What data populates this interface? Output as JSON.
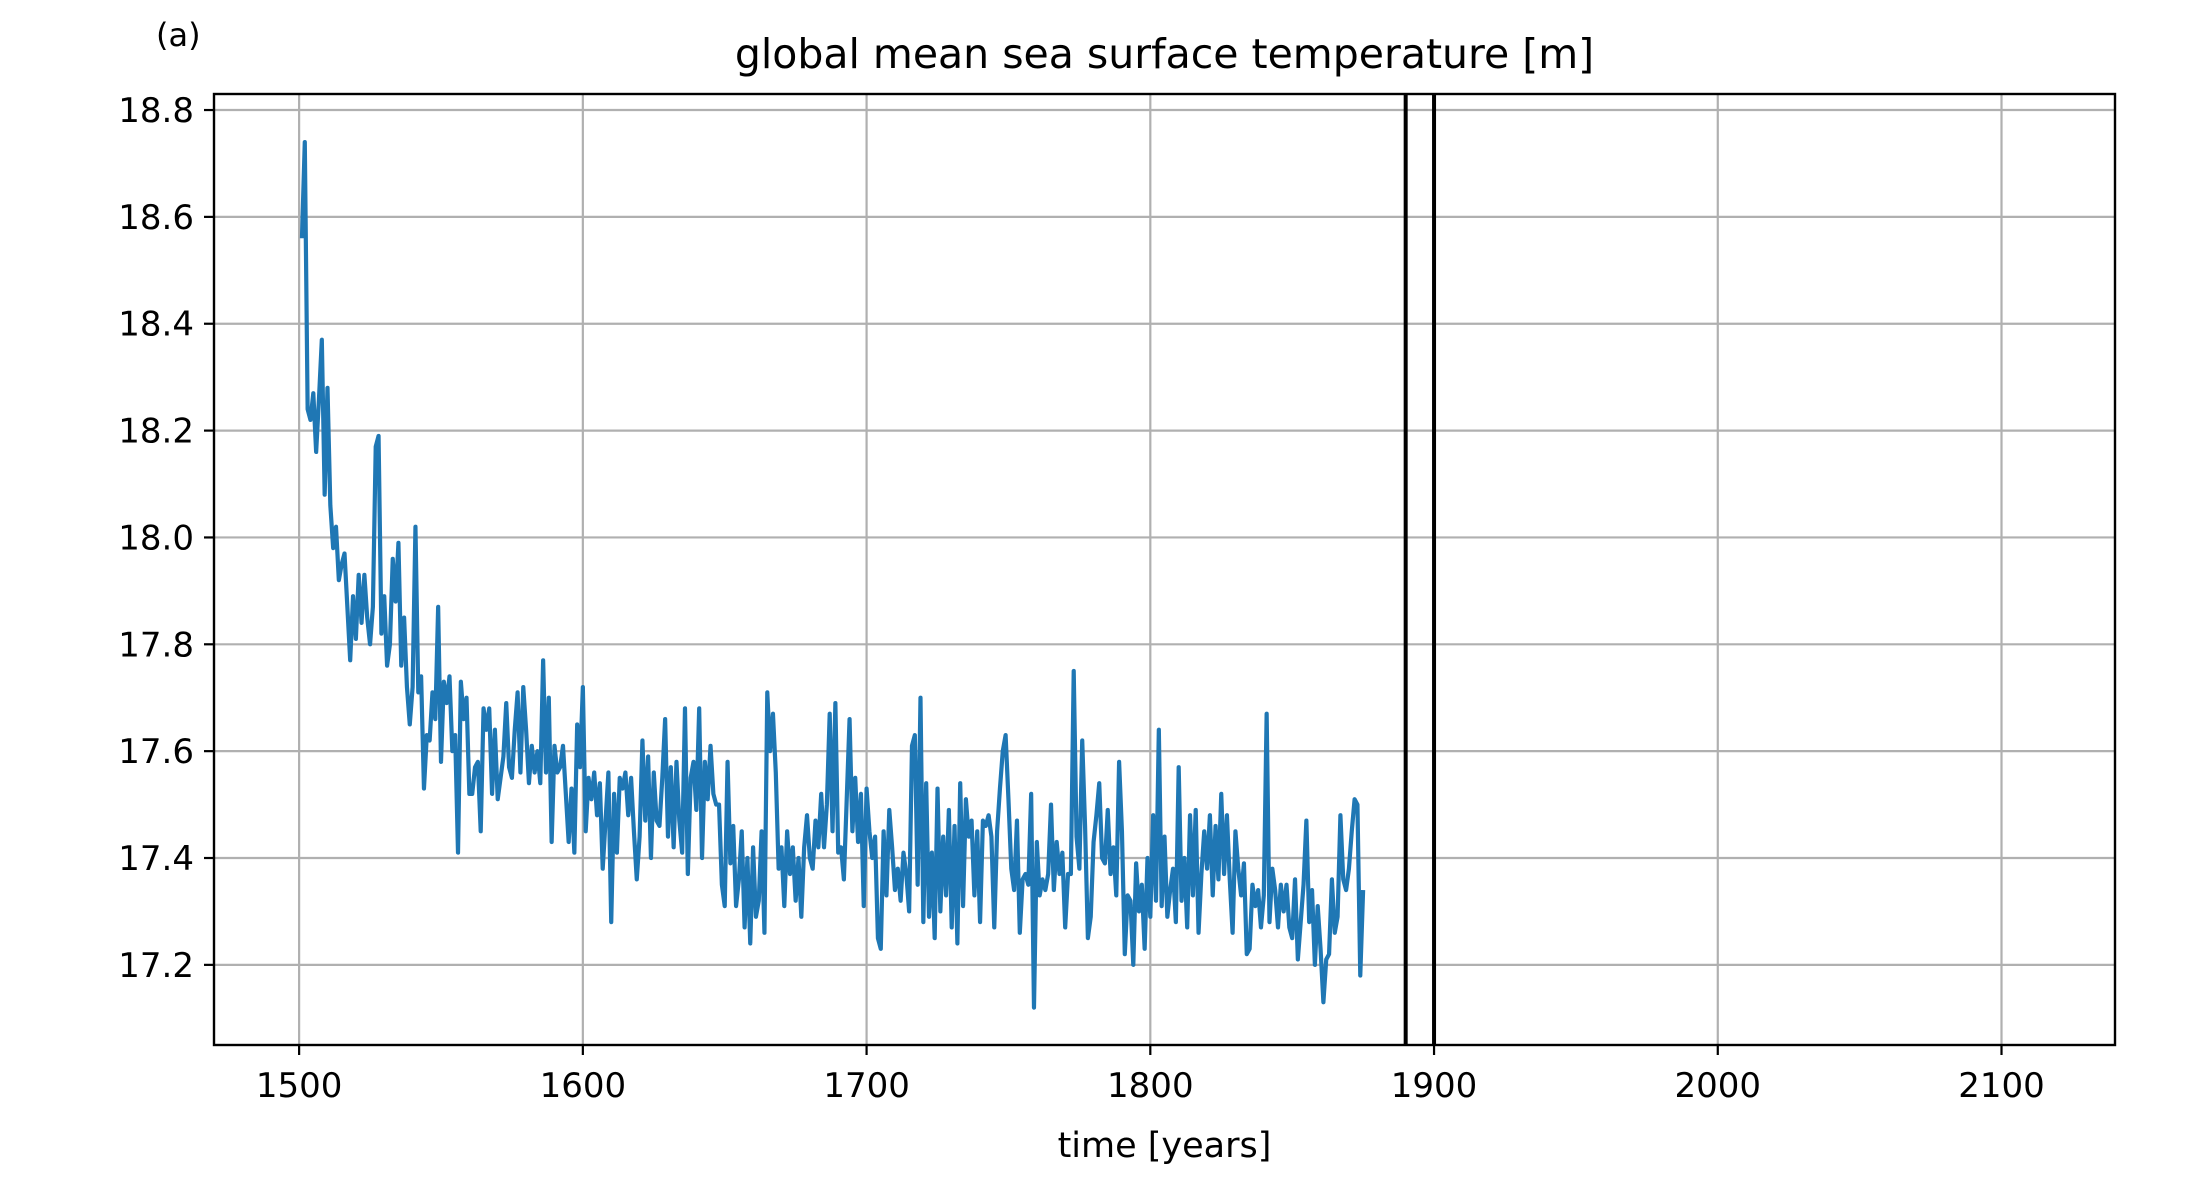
{
  "chart_data": {
    "type": "line",
    "panel_label": "(a)",
    "title": "global mean sea surface temperature [m]",
    "xlabel": "time [years]",
    "ylabel": "",
    "xlim": [
      1470,
      2140
    ],
    "ylim": [
      17.05,
      18.83
    ],
    "xticks": [
      1500,
      1600,
      1700,
      1800,
      1900,
      2000,
      2100
    ],
    "xtick_labels": [
      "1500",
      "1600",
      "1700",
      "1800",
      "1900",
      "2000",
      "2100"
    ],
    "yticks": [
      17.2,
      17.4,
      17.6,
      17.8,
      18.0,
      18.2,
      18.4,
      18.6,
      18.8
    ],
    "ytick_labels": [
      "17.2",
      "17.4",
      "17.6",
      "17.8",
      "18.0",
      "18.2",
      "18.4",
      "18.6",
      "18.8"
    ],
    "grid": true,
    "vertical_lines": [
      1890,
      1900
    ],
    "series": [
      {
        "color": "#1f77b4",
        "x_start": 1501,
        "x_step": 1,
        "values": [
          18.56,
          18.74,
          18.24,
          18.22,
          18.27,
          18.16,
          18.26,
          18.37,
          18.08,
          18.28,
          18.06,
          17.98,
          18.02,
          17.92,
          17.95,
          17.97,
          17.87,
          17.77,
          17.89,
          17.81,
          17.93,
          17.84,
          17.93,
          17.85,
          17.8,
          17.87,
          18.17,
          18.19,
          17.82,
          17.89,
          17.76,
          17.8,
          17.96,
          17.88,
          17.99,
          17.76,
          17.85,
          17.72,
          17.65,
          17.72,
          18.02,
          17.71,
          17.74,
          17.53,
          17.63,
          17.62,
          17.71,
          17.66,
          17.87,
          17.58,
          17.73,
          17.69,
          17.74,
          17.6,
          17.63,
          17.41,
          17.73,
          17.66,
          17.7,
          17.52,
          17.52,
          17.57,
          17.58,
          17.45,
          17.68,
          17.64,
          17.68,
          17.52,
          17.64,
          17.51,
          17.55,
          17.59,
          17.69,
          17.57,
          17.55,
          17.64,
          17.71,
          17.56,
          17.72,
          17.64,
          17.54,
          17.61,
          17.56,
          17.6,
          17.54,
          17.77,
          17.56,
          17.7,
          17.43,
          17.61,
          17.56,
          17.57,
          17.61,
          17.52,
          17.43,
          17.53,
          17.41,
          17.65,
          17.57,
          17.72,
          17.45,
          17.55,
          17.51,
          17.56,
          17.48,
          17.54,
          17.38,
          17.47,
          17.56,
          17.28,
          17.52,
          17.41,
          17.55,
          17.53,
          17.56,
          17.48,
          17.55,
          17.45,
          17.36,
          17.44,
          17.62,
          17.47,
          17.59,
          17.4,
          17.56,
          17.47,
          17.46,
          17.55,
          17.66,
          17.44,
          17.57,
          17.42,
          17.58,
          17.47,
          17.41,
          17.68,
          17.37,
          17.55,
          17.58,
          17.49,
          17.68,
          17.4,
          17.58,
          17.51,
          17.61,
          17.52,
          17.5,
          17.5,
          17.35,
          17.31,
          17.58,
          17.39,
          17.46,
          17.31,
          17.36,
          17.45,
          17.27,
          17.4,
          17.24,
          17.42,
          17.29,
          17.32,
          17.45,
          17.26,
          17.71,
          17.6,
          17.67,
          17.56,
          17.38,
          17.42,
          17.31,
          17.45,
          17.37,
          17.42,
          17.32,
          17.4,
          17.29,
          17.42,
          17.48,
          17.4,
          17.38,
          17.47,
          17.42,
          17.52,
          17.42,
          17.5,
          17.67,
          17.45,
          17.69,
          17.41,
          17.42,
          17.36,
          17.51,
          17.66,
          17.45,
          17.55,
          17.43,
          17.52,
          17.31,
          17.53,
          17.45,
          17.4,
          17.44,
          17.25,
          17.23,
          17.45,
          17.33,
          17.49,
          17.42,
          17.34,
          17.38,
          17.32,
          17.41,
          17.37,
          17.3,
          17.61,
          17.63,
          17.35,
          17.7,
          17.28,
          17.54,
          17.29,
          17.41,
          17.25,
          17.53,
          17.3,
          17.44,
          17.33,
          17.49,
          17.27,
          17.46,
          17.24,
          17.54,
          17.31,
          17.51,
          17.44,
          17.47,
          17.33,
          17.45,
          17.28,
          17.47,
          17.46,
          17.48,
          17.44,
          17.27,
          17.45,
          17.53,
          17.6,
          17.63,
          17.51,
          17.38,
          17.34,
          17.47,
          17.26,
          17.36,
          17.37,
          17.35,
          17.52,
          17.12,
          17.43,
          17.33,
          17.36,
          17.34,
          17.37,
          17.5,
          17.34,
          17.43,
          17.37,
          17.41,
          17.27,
          17.37,
          17.37,
          17.75,
          17.44,
          17.38,
          17.62,
          17.46,
          17.25,
          17.29,
          17.43,
          17.48,
          17.54,
          17.4,
          17.39,
          17.49,
          17.37,
          17.42,
          17.33,
          17.58,
          17.45,
          17.22,
          17.33,
          17.32,
          17.2,
          17.39,
          17.3,
          17.35,
          17.23,
          17.4,
          17.29,
          17.48,
          17.32,
          17.64,
          17.31,
          17.44,
          17.29,
          17.34,
          17.38,
          17.28,
          17.57,
          17.32,
          17.4,
          17.27,
          17.48,
          17.33,
          17.49,
          17.26,
          17.37,
          17.45,
          17.38,
          17.48,
          17.33,
          17.46,
          17.36,
          17.52,
          17.37,
          17.48,
          17.36,
          17.26,
          17.45,
          17.38,
          17.33,
          17.39,
          17.22,
          17.23,
          17.35,
          17.31,
          17.34,
          17.27,
          17.33,
          17.67,
          17.28,
          17.38,
          17.34,
          17.27,
          17.35,
          17.3,
          17.35,
          17.27,
          17.25,
          17.36,
          17.21,
          17.28,
          17.35,
          17.47,
          17.28,
          17.34,
          17.2,
          17.31,
          17.23,
          17.13,
          17.21,
          17.22,
          17.36,
          17.26,
          17.29,
          17.48,
          17.36,
          17.34,
          17.38,
          17.45,
          17.51,
          17.5,
          17.18,
          17.34
        ]
      }
    ]
  }
}
